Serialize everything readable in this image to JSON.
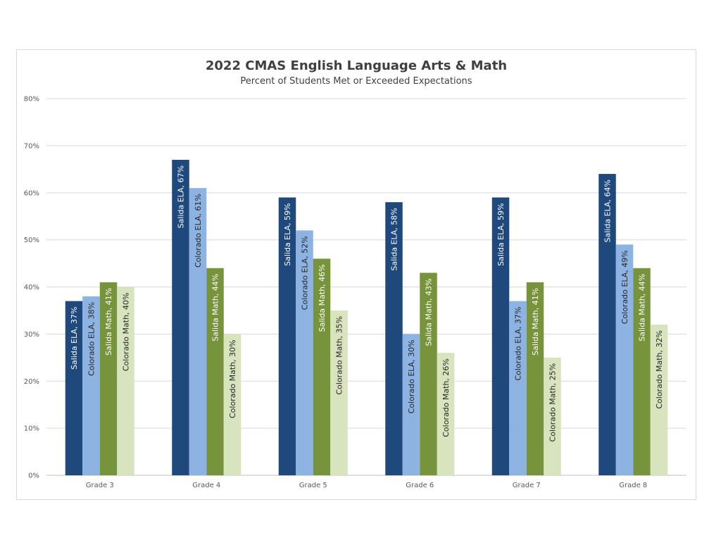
{
  "chart_data": {
    "type": "bar",
    "title": "2022 CMAS English Language Arts & Math",
    "subtitle": "Percent of Students Met or Exceeded Expectations",
    "categories": [
      "Grade 3",
      "Grade 4",
      "Grade 5",
      "Grade 6",
      "Grade 7",
      "Grade 8"
    ],
    "y_ticks": [
      "0%",
      "10%",
      "20%",
      "30%",
      "40%",
      "50%",
      "60%",
      "70%",
      "80%"
    ],
    "ylim": [
      0,
      80
    ],
    "grid": true,
    "legend": "none",
    "series": [
      {
        "name": "Salida ELA",
        "color": "#1f497d",
        "label_color": "#ffffff",
        "values": [
          37,
          67,
          59,
          58,
          59,
          64
        ],
        "labels": [
          "Salida ELA, 37%",
          "Salida ELA, 67%",
          "Salida ELA, 59%",
          "Salida ELA, 58%",
          "Salida ELA, 59%",
          "Salida ELA, 64%"
        ]
      },
      {
        "name": "Colorado ELA",
        "color": "#8db3e2",
        "label_color": "#262626",
        "values": [
          38,
          61,
          52,
          30,
          37,
          49
        ],
        "labels": [
          "Colorado ELA, 38%",
          "Colorado ELA, 61%",
          "Colorado ELA, 52%",
          "Colorado ELA, 30%",
          "Colorado ELA, 37%",
          "Colorado ELA, 49%"
        ]
      },
      {
        "name": "Salida Math",
        "color": "#77933c",
        "label_color": "#ffffff",
        "values": [
          41,
          44,
          46,
          43,
          41,
          44
        ],
        "labels": [
          "Salida Math, 41%",
          "Salida Math, 44%",
          "Salida Math, 46%",
          "Salida Math, 43%",
          "Salida Math, 41%",
          "Salida Math, 44%"
        ]
      },
      {
        "name": "Colorado Math",
        "color": "#d7e4bd",
        "label_color": "#262626",
        "values": [
          40,
          30,
          35,
          26,
          25,
          32
        ],
        "labels": [
          "Colorado Math, 40%",
          "Colorado Math, 30%",
          "Colorado Math, 35%",
          "Colorado Math, 26%",
          "Colorado Math, 25%",
          "Colorado Math, 32%"
        ]
      }
    ]
  }
}
